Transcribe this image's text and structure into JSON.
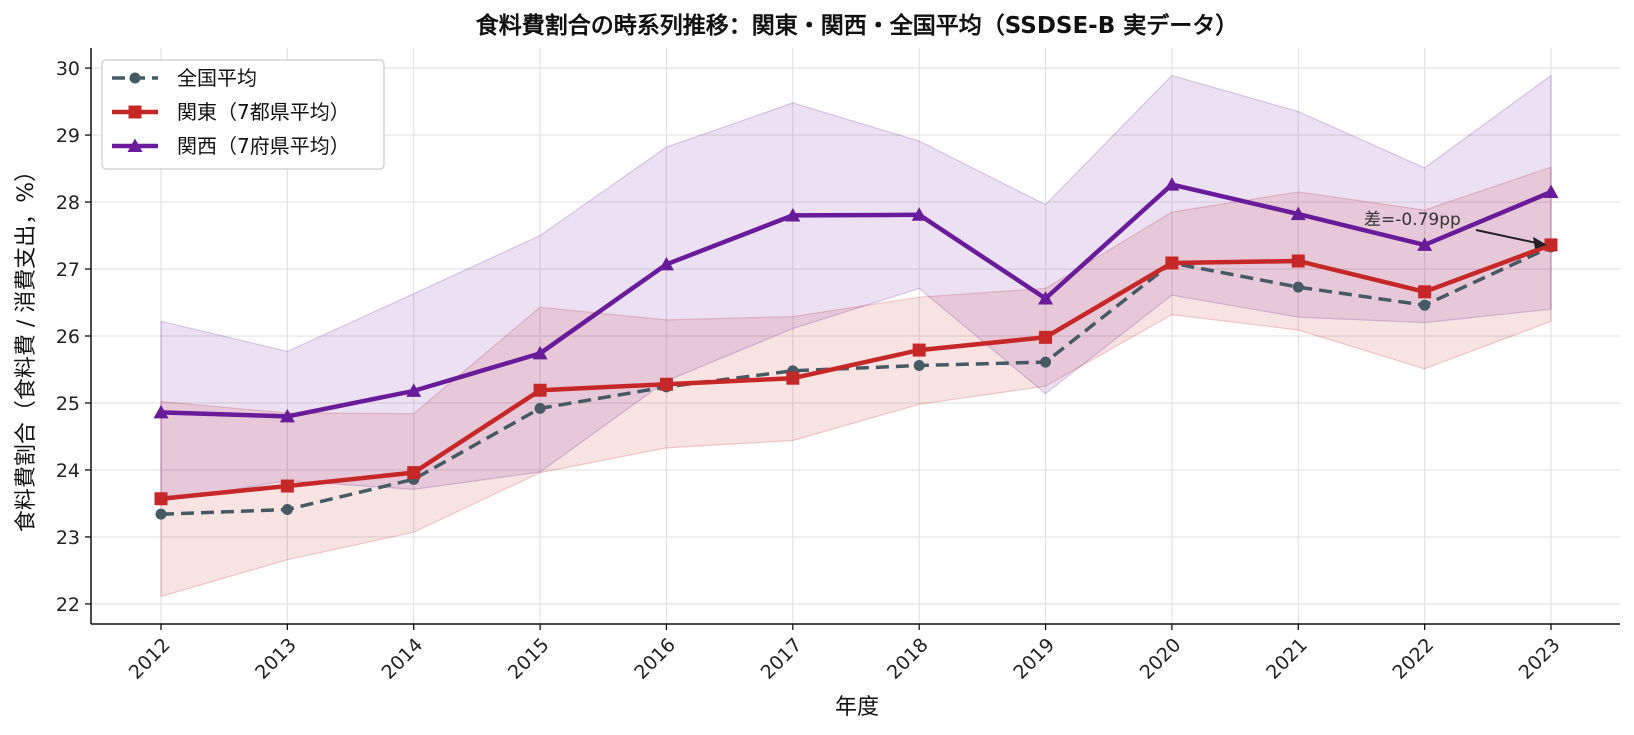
{
  "chart_data": {
    "type": "line",
    "title": "食料費割合の時系列推移：関東・関西・全国平均（SSDSE-B 実データ）",
    "xlabel": "年度",
    "ylabel": "食料費割合（食料費 / 消費支出，%）",
    "x": [
      "2012",
      "2013",
      "2014",
      "2015",
      "2016",
      "2017",
      "2018",
      "2019",
      "2020",
      "2021",
      "2022",
      "2023"
    ],
    "ylim": [
      21.7,
      30.3
    ],
    "yticks": [
      "22",
      "23",
      "24",
      "25",
      "26",
      "27",
      "28",
      "29",
      "30"
    ],
    "grid": true,
    "legend_position": "top-left",
    "series": [
      {
        "name": "全国平均",
        "color": "#455a64",
        "marker": "circle",
        "linestyle": "dashed",
        "values": [
          23.34,
          23.41,
          23.86,
          24.92,
          25.24,
          25.48,
          25.56,
          25.61,
          27.09,
          26.73,
          26.46,
          27.33
        ]
      },
      {
        "name": "関東（7都県平均）",
        "color": "#c62828",
        "marker": "square",
        "linestyle": "solid",
        "values": [
          23.57,
          23.76,
          23.96,
          25.19,
          25.28,
          25.37,
          25.79,
          25.98,
          27.09,
          27.12,
          26.66,
          27.36
        ],
        "band_upper": [
          25.02,
          24.85,
          24.84,
          26.43,
          26.24,
          26.29,
          26.58,
          26.71,
          27.85,
          28.15,
          27.88,
          28.52
        ],
        "band_lower": [
          22.11,
          22.66,
          23.07,
          23.96,
          24.33,
          24.44,
          24.98,
          25.25,
          26.32,
          26.09,
          25.51,
          26.22
        ]
      },
      {
        "name": "関西（7府県平均）",
        "color": "#6a1b9a",
        "marker": "triangle",
        "linestyle": "solid",
        "values": [
          24.86,
          24.8,
          25.18,
          25.74,
          27.07,
          27.8,
          27.81,
          26.56,
          28.26,
          27.82,
          27.36,
          28.15
        ],
        "band_upper": [
          26.22,
          25.77,
          26.63,
          27.5,
          28.82,
          29.48,
          28.91,
          27.96,
          29.89,
          29.35,
          28.51,
          29.89
        ],
        "band_lower": [
          23.53,
          23.84,
          23.71,
          23.97,
          25.33,
          26.11,
          26.71,
          25.14,
          26.61,
          26.28,
          26.2,
          26.4
        ]
      }
    ],
    "annotations": [
      {
        "text": "差=-0.79pp",
        "target_x": "2023",
        "target_y": 27.36
      }
    ]
  }
}
